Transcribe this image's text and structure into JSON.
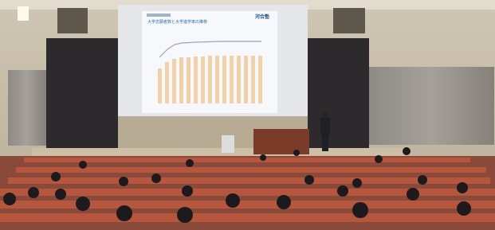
{
  "screen": {
    "title": "大学志願者数と大学進学率の推移",
    "logo": "河合塾"
  }
}
